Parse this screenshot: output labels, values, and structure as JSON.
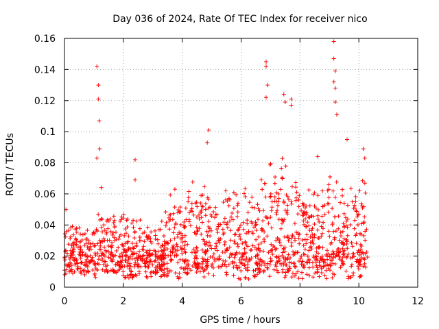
{
  "chart_data": {
    "type": "scatter",
    "title": "Day 036 of 2024, Rate Of TEC Index for receiver nico",
    "xlabel": "GPS time / hours",
    "ylabel": "ROTI / TECUs",
    "xlim": [
      0,
      12
    ],
    "ylim": [
      0,
      0.16
    ],
    "xticks": [
      0,
      2,
      4,
      6,
      8,
      10,
      12
    ],
    "xtick_labels": [
      "0",
      "2",
      "4",
      "6",
      "8",
      "10",
      "12"
    ],
    "yticks": [
      0,
      0.02,
      0.04,
      0.06,
      0.08,
      0.1,
      0.12,
      0.14,
      0.16
    ],
    "ytick_labels": [
      "0",
      "0.02",
      "0.04",
      "0.06",
      "0.08",
      "0.1",
      "0.12",
      "0.14",
      "0.16"
    ],
    "grid": true,
    "marker": "+",
    "marker_color": "#ff0000",
    "data_x_range_hours": [
      0,
      10.3
    ],
    "baseline_band": [
      0.005,
      0.03
    ],
    "series": [
      {
        "name": "ROTI",
        "notable_points": [
          {
            "x": 0.05,
            "y": 0.05
          },
          {
            "x": 1.1,
            "y": 0.142
          },
          {
            "x": 1.15,
            "y": 0.13
          },
          {
            "x": 1.15,
            "y": 0.121
          },
          {
            "x": 1.18,
            "y": 0.107
          },
          {
            "x": 1.2,
            "y": 0.089
          },
          {
            "x": 1.1,
            "y": 0.083
          },
          {
            "x": 1.25,
            "y": 0.064
          },
          {
            "x": 2.4,
            "y": 0.082
          },
          {
            "x": 2.4,
            "y": 0.069
          },
          {
            "x": 3.75,
            "y": 0.063
          },
          {
            "x": 4.9,
            "y": 0.101
          },
          {
            "x": 4.85,
            "y": 0.093
          },
          {
            "x": 6.85,
            "y": 0.145
          },
          {
            "x": 6.85,
            "y": 0.142
          },
          {
            "x": 6.9,
            "y": 0.13
          },
          {
            "x": 6.85,
            "y": 0.122
          },
          {
            "x": 7.45,
            "y": 0.124
          },
          {
            "x": 7.5,
            "y": 0.119
          },
          {
            "x": 7.7,
            "y": 0.121
          },
          {
            "x": 7.7,
            "y": 0.117
          },
          {
            "x": 8.6,
            "y": 0.084
          },
          {
            "x": 9.15,
            "y": 0.158
          },
          {
            "x": 9.15,
            "y": 0.147
          },
          {
            "x": 9.2,
            "y": 0.139
          },
          {
            "x": 9.15,
            "y": 0.132
          },
          {
            "x": 9.2,
            "y": 0.128
          },
          {
            "x": 9.2,
            "y": 0.119
          },
          {
            "x": 9.25,
            "y": 0.111
          },
          {
            "x": 9.6,
            "y": 0.095
          },
          {
            "x": 10.15,
            "y": 0.089
          },
          {
            "x": 10.2,
            "y": 0.083
          }
        ]
      }
    ]
  }
}
